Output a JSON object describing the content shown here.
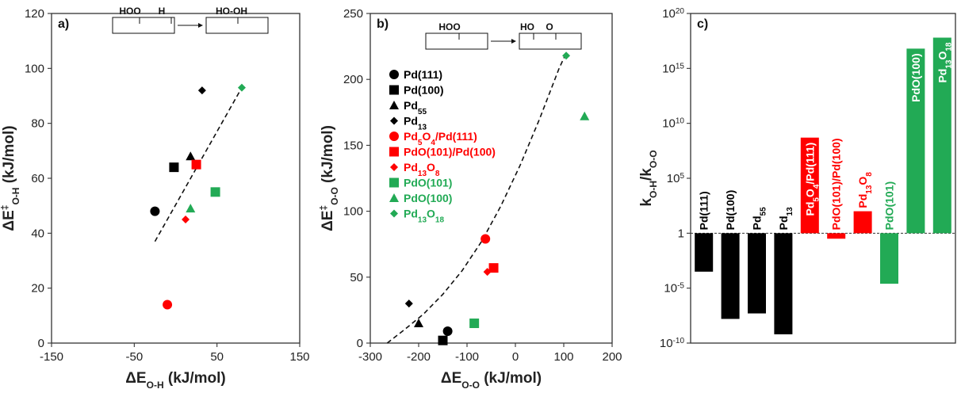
{
  "chart_data": [
    {
      "panel": "a)",
      "type": "scatter",
      "xlabel_main": "ΔE",
      "xlabel_sub": "O-H",
      "xlabel_unit": " (kJ/mol)",
      "ylabel_main": "ΔE",
      "ylabel_sup": "‡",
      "ylabel_sub": "O-H",
      "ylabel_unit": " (kJ/mol)",
      "xlim": [
        -150,
        150
      ],
      "ylim": [
        0,
        120
      ],
      "xticks": [
        -150,
        -50,
        50,
        150
      ],
      "yticks": [
        0,
        20,
        40,
        60,
        80,
        100,
        120
      ],
      "diagram": {
        "left_labels": [
          "HOO",
          "H"
        ],
        "right_labels": [
          "HO-OH"
        ]
      },
      "trendline": [
        [
          -25,
          37
        ],
        [
          80,
          93
        ]
      ],
      "points": [
        {
          "name": "Pd(111)",
          "marker": "circle",
          "color": "#000000",
          "x": -25,
          "y": 48
        },
        {
          "name": "Pd(100)",
          "marker": "square",
          "color": "#000000",
          "x": -2,
          "y": 64
        },
        {
          "name": "Pd55",
          "marker": "triangle",
          "color": "#000000",
          "x": 18,
          "y": 68
        },
        {
          "name": "Pd13",
          "marker": "diamond",
          "color": "#000000",
          "x": 32,
          "y": 92
        },
        {
          "name": "Pd5O4/Pd(111)",
          "marker": "circle",
          "color": "#ff0000",
          "x": -10,
          "y": 14
        },
        {
          "name": "PdO(101)/Pd(100)",
          "marker": "square",
          "color": "#ff0000",
          "x": 25,
          "y": 65
        },
        {
          "name": "Pd13O8",
          "marker": "diamond",
          "color": "#ff0000",
          "x": 12,
          "y": 45
        },
        {
          "name": "PdO(101)",
          "marker": "square",
          "color": "#22aa55",
          "x": 48,
          "y": 55
        },
        {
          "name": "PdO(100)",
          "marker": "triangle",
          "color": "#22aa55",
          "x": 18,
          "y": 49
        },
        {
          "name": "Pd13O18",
          "marker": "diamond",
          "color": "#22aa55",
          "x": 80,
          "y": 93
        }
      ]
    },
    {
      "panel": "b)",
      "type": "scatter",
      "xlabel_main": "ΔE",
      "xlabel_sub": "O-O",
      "xlabel_unit": " (kJ/mol)",
      "ylabel_main": "ΔE",
      "ylabel_sup": "‡",
      "ylabel_sub": "O-O",
      "ylabel_unit": " (kJ/mol)",
      "xlim": [
        -300,
        200
      ],
      "ylim": [
        0,
        250
      ],
      "xticks": [
        -300,
        -200,
        -100,
        0,
        100,
        200
      ],
      "yticks": [
        0,
        50,
        100,
        150,
        200,
        250
      ],
      "diagram": {
        "left_labels": [
          "HOO"
        ],
        "right_labels": [
          "HO",
          "O"
        ]
      },
      "trendline": [
        [
          -265,
          0
        ],
        [
          -230,
          10
        ],
        [
          -190,
          22
        ],
        [
          -150,
          37
        ],
        [
          -110,
          55
        ],
        [
          -70,
          77
        ],
        [
          -30,
          104
        ],
        [
          10,
          135
        ],
        [
          50,
          170
        ],
        [
          90,
          208
        ],
        [
          105,
          220
        ]
      ],
      "legend": [
        {
          "label": "Pd(111)",
          "marker": "circle",
          "color": "#000000"
        },
        {
          "label": "Pd(100)",
          "marker": "square",
          "color": "#000000"
        },
        {
          "label": "Pd",
          "sub": "55",
          "marker": "triangle",
          "color": "#000000"
        },
        {
          "label": "Pd",
          "sub": "13",
          "marker": "diamond",
          "color": "#000000"
        },
        {
          "label": "Pd",
          "sub": "5",
          "label2": "O",
          "sub2": "4",
          "label3": "/Pd(111)",
          "marker": "circle",
          "color": "#ff0000"
        },
        {
          "label": "PdO(101)/Pd(100)",
          "marker": "square",
          "color": "#ff0000"
        },
        {
          "label": "Pd",
          "sub": "13",
          "label2": "O",
          "sub2": "8",
          "marker": "diamond",
          "color": "#ff0000"
        },
        {
          "label": "PdO(101)",
          "marker": "square",
          "color": "#22aa55"
        },
        {
          "label": "PdO(100)",
          "marker": "triangle",
          "color": "#22aa55"
        },
        {
          "label": "Pd",
          "sub": "13",
          "label2": "O",
          "sub2": "18",
          "marker": "diamond",
          "color": "#22aa55"
        }
      ],
      "points": [
        {
          "name": "Pd(111)",
          "marker": "circle",
          "color": "#000000",
          "x": -140,
          "y": 9
        },
        {
          "name": "Pd(100)",
          "marker": "square",
          "color": "#000000",
          "x": -150,
          "y": 2
        },
        {
          "name": "Pd55",
          "marker": "triangle",
          "color": "#000000",
          "x": -200,
          "y": 15
        },
        {
          "name": "Pd13",
          "marker": "diamond",
          "color": "#000000",
          "x": -220,
          "y": 30
        },
        {
          "name": "Pd5O4/Pd(111)",
          "marker": "circle",
          "color": "#ff0000",
          "x": -62,
          "y": 79
        },
        {
          "name": "PdO(101)/Pd(100)",
          "marker": "square",
          "color": "#ff0000",
          "x": -45,
          "y": 57
        },
        {
          "name": "Pd13O8",
          "marker": "diamond",
          "color": "#ff0000",
          "x": -58,
          "y": 54
        },
        {
          "name": "PdO(101)",
          "marker": "square",
          "color": "#22aa55",
          "x": -85,
          "y": 15
        },
        {
          "name": "PdO(100)",
          "marker": "triangle",
          "color": "#22aa55",
          "x": 143,
          "y": 172
        },
        {
          "name": "Pd13O18",
          "marker": "diamond",
          "color": "#22aa55",
          "x": 105,
          "y": 218
        }
      ]
    },
    {
      "panel": "c)",
      "type": "bar",
      "yscale": "log",
      "ylabel_k": "k",
      "ylabel_sub1": "O-H",
      "ylabel_slash": "/k",
      "ylabel_sub2": "O-O",
      "yticks": [
        {
          "exp": -10,
          "base": "10",
          "sup": "-10"
        },
        {
          "exp": -5,
          "base": "10",
          "sup": "-5"
        },
        {
          "exp": 0,
          "base": "1",
          "sup": ""
        },
        {
          "exp": 5,
          "base": "10",
          "sup": "5"
        },
        {
          "exp": 10,
          "base": "10",
          "sup": "10"
        },
        {
          "exp": 15,
          "base": "10",
          "sup": "15"
        },
        {
          "exp": 20,
          "base": "10",
          "sup": "20"
        }
      ],
      "ylim_exp": [
        -10,
        20
      ],
      "bars": [
        {
          "label": "Pd(111)",
          "color": "#000000",
          "log10": -3.5
        },
        {
          "label": "Pd(100)",
          "color": "#000000",
          "log10": -7.8
        },
        {
          "label": "Pd",
          "sub": "55",
          "color": "#000000",
          "log10": -7.3
        },
        {
          "label": "Pd",
          "sub": "13",
          "color": "#000000",
          "log10": -9.2
        },
        {
          "label": "Pd",
          "sub": "5",
          "label2": "O",
          "sub2": "4",
          "label3": "/Pd(111)",
          "color": "#ff0000",
          "log10": 8.7
        },
        {
          "label": "PdO(101)/Pd(100)",
          "color": "#ff0000",
          "log10": -0.5
        },
        {
          "label": "Pd",
          "sub": "13",
          "label2": "O",
          "sub2": "8",
          "color": "#ff0000",
          "log10": 2.0
        },
        {
          "label": "PdO(101)",
          "color": "#22aa55",
          "log10": -4.6
        },
        {
          "label": "PdO(100)",
          "color": "#22aa55",
          "log10": 16.8
        },
        {
          "label": "Pd",
          "sub": "13",
          "label2": "O",
          "sub2": "18",
          "color": "#22aa55",
          "log10": 17.8
        }
      ]
    }
  ]
}
